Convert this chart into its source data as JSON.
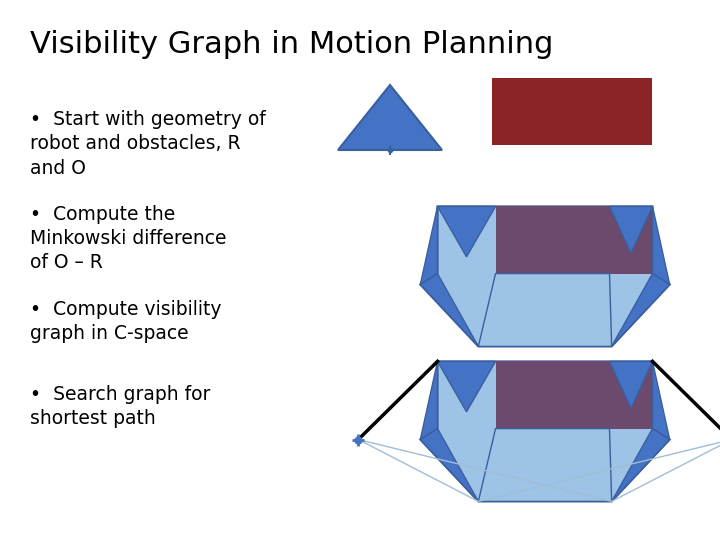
{
  "title": "Visibility Graph in Motion Planning",
  "title_fontsize": 22,
  "bullet_points": [
    "Start with geometry of\nrobot and obstacles, R\nand O",
    "Compute the\nMinkowski difference\nof O – R",
    "Compute visibility\ngraph in C-space",
    "Search graph for\nshortest path"
  ],
  "bullet_fontsize": 13.5,
  "bg_color": "#ffffff",
  "text_color": "#000000",
  "blue_dark": "#4472C4",
  "blue_light": "#9DC3E6",
  "blue_edge": "#3A5F9F",
  "red_obstacle": "#8B2525",
  "purple_overlap": "#6B4A6E"
}
